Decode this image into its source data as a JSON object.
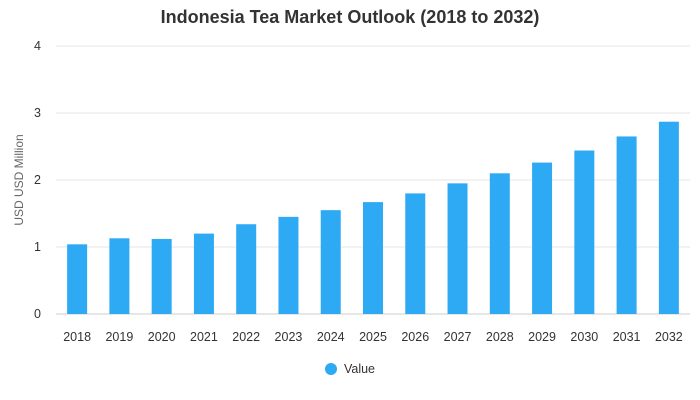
{
  "chart_data": {
    "type": "bar",
    "title": "Indonesia Tea Market Outlook (2018 to 2032)",
    "xlabel": "",
    "ylabel": "USD USD Million",
    "categories": [
      "2018",
      "2019",
      "2020",
      "2021",
      "2022",
      "2023",
      "2024",
      "2025",
      "2026",
      "2027",
      "2028",
      "2029",
      "2030",
      "2031",
      "2032"
    ],
    "series": [
      {
        "name": "Value",
        "values": [
          1.04,
          1.13,
          1.12,
          1.2,
          1.34,
          1.45,
          1.55,
          1.67,
          1.8,
          1.95,
          2.1,
          2.26,
          2.44,
          2.65,
          2.87
        ]
      }
    ],
    "ylim": [
      0,
      4
    ],
    "yticks": [
      0,
      1,
      2,
      3,
      4
    ],
    "grid": true,
    "legend_position": "bottom",
    "colors": {
      "bar": "#2eaaf5",
      "grid": "#e6e6e6",
      "axis": "#cccccc"
    }
  }
}
